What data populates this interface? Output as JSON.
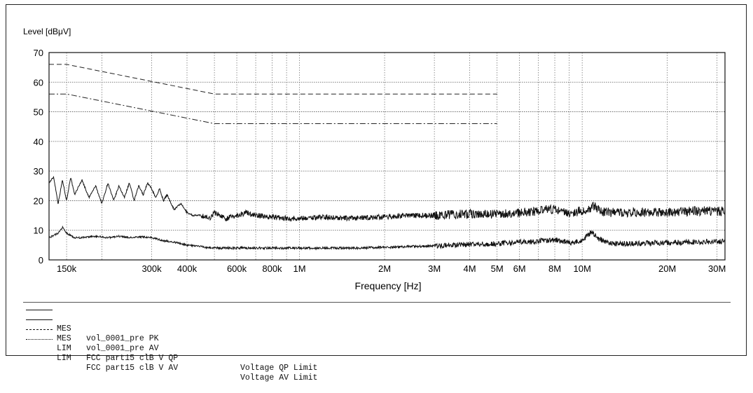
{
  "chart_data": {
    "type": "line",
    "ylabel": "Level [dBμV]",
    "xlabel": "Frequency [Hz]",
    "xscale": "log",
    "xlim": [
      130000,
      32000000
    ],
    "ylim": [
      0,
      70
    ],
    "y_ticks": [
      0,
      10,
      20,
      30,
      40,
      50,
      60,
      70
    ],
    "x_ticks": [
      {
        "value": 150000,
        "label": "150k"
      },
      {
        "value": 300000,
        "label": "300k"
      },
      {
        "value": 400000,
        "label": "400k"
      },
      {
        "value": 600000,
        "label": "600k"
      },
      {
        "value": 800000,
        "label": "800k"
      },
      {
        "value": 1000000,
        "label": "1M"
      },
      {
        "value": 2000000,
        "label": "2M"
      },
      {
        "value": 3000000,
        "label": "3M"
      },
      {
        "value": 4000000,
        "label": "4M"
      },
      {
        "value": 5000000,
        "label": "5M"
      },
      {
        "value": 6000000,
        "label": "6M"
      },
      {
        "value": 8000000,
        "label": "8M"
      },
      {
        "value": 10000000,
        "label": "10M"
      },
      {
        "value": 20000000,
        "label": "20M"
      },
      {
        "value": 30000000,
        "label": "30M"
      }
    ],
    "x_grid": [
      150000,
      200000,
      300000,
      400000,
      500000,
      600000,
      700000,
      800000,
      900000,
      1000000,
      2000000,
      3000000,
      4000000,
      5000000,
      6000000,
      7000000,
      8000000,
      9000000,
      10000000,
      20000000,
      30000000
    ],
    "grid": true,
    "legend_position": "bottom",
    "series": [
      {
        "name": "vol_0001_pre PK",
        "kind": "MES",
        "style": "solid",
        "x": [
          130000,
          135000,
          140000,
          145000,
          150000,
          155000,
          160000,
          170000,
          180000,
          190000,
          200000,
          210000,
          220000,
          230000,
          240000,
          250000,
          260000,
          270000,
          280000,
          290000,
          300000,
          310000,
          320000,
          330000,
          340000,
          360000,
          380000,
          400000,
          420000,
          450000,
          480000,
          500000,
          550000,
          600000,
          650000,
          700000,
          800000,
          900000,
          1000000,
          1200000,
          1500000,
          2000000,
          2500000,
          3000000,
          4000000,
          5000000,
          6000000,
          7000000,
          8000000,
          9000000,
          10000000,
          11000000,
          12000000,
          15000000,
          20000000,
          25000000,
          30000000,
          32000000
        ],
        "values": [
          26,
          28,
          19,
          27,
          20,
          28,
          22,
          27,
          21,
          25,
          19,
          26,
          20,
          25,
          21,
          26,
          20,
          25,
          22,
          26,
          24,
          21,
          24,
          20,
          22,
          17,
          19,
          16,
          15,
          15,
          14,
          16,
          14,
          15,
          16,
          15,
          14.5,
          14,
          14,
          14.5,
          14,
          14.5,
          15,
          15,
          15.5,
          15.5,
          16,
          16.5,
          17,
          16,
          16.5,
          18,
          16,
          16,
          16,
          16.5,
          16.5,
          16.5
        ]
      },
      {
        "name": "vol_0001_pre AV",
        "kind": "MES",
        "style": "solid",
        "x": [
          130000,
          140000,
          145000,
          150000,
          160000,
          170000,
          190000,
          210000,
          230000,
          250000,
          280000,
          300000,
          330000,
          360000,
          400000,
          450000,
          500000,
          600000,
          800000,
          1000000,
          1500000,
          2000000,
          3000000,
          4000000,
          5000000,
          6000000,
          7000000,
          8000000,
          9000000,
          10000000,
          10800000,
          11500000,
          12500000,
          15000000,
          20000000,
          30000000,
          32000000
        ],
        "values": [
          7.5,
          9,
          11,
          9,
          7.5,
          7.5,
          8,
          7.5,
          8,
          7.5,
          7.8,
          7.5,
          6.5,
          6,
          5,
          4.5,
          4,
          4,
          4,
          4,
          4,
          4.2,
          4.8,
          5.2,
          5.5,
          6,
          6.3,
          6.8,
          5.8,
          6.5,
          9.5,
          7,
          5.5,
          5.5,
          5.8,
          6.2,
          6.2
        ]
      },
      {
        "name": "FCC part15 clB V QP",
        "kind": "LIM",
        "style": "dashed",
        "description": "Voltage QP Limit",
        "x": [
          130000,
          150000,
          500000,
          500000,
          5000000,
          5000000
        ],
        "values": [
          66,
          66,
          56,
          56,
          56,
          56
        ]
      },
      {
        "name": "FCC part15 clB V AV",
        "kind": "LIM",
        "style": "dashdot",
        "description": "Voltage AV Limit",
        "x": [
          130000,
          150000,
          500000,
          500000,
          5000000,
          5000000
        ],
        "values": [
          56,
          56,
          46,
          46,
          46,
          46
        ]
      }
    ]
  }
}
